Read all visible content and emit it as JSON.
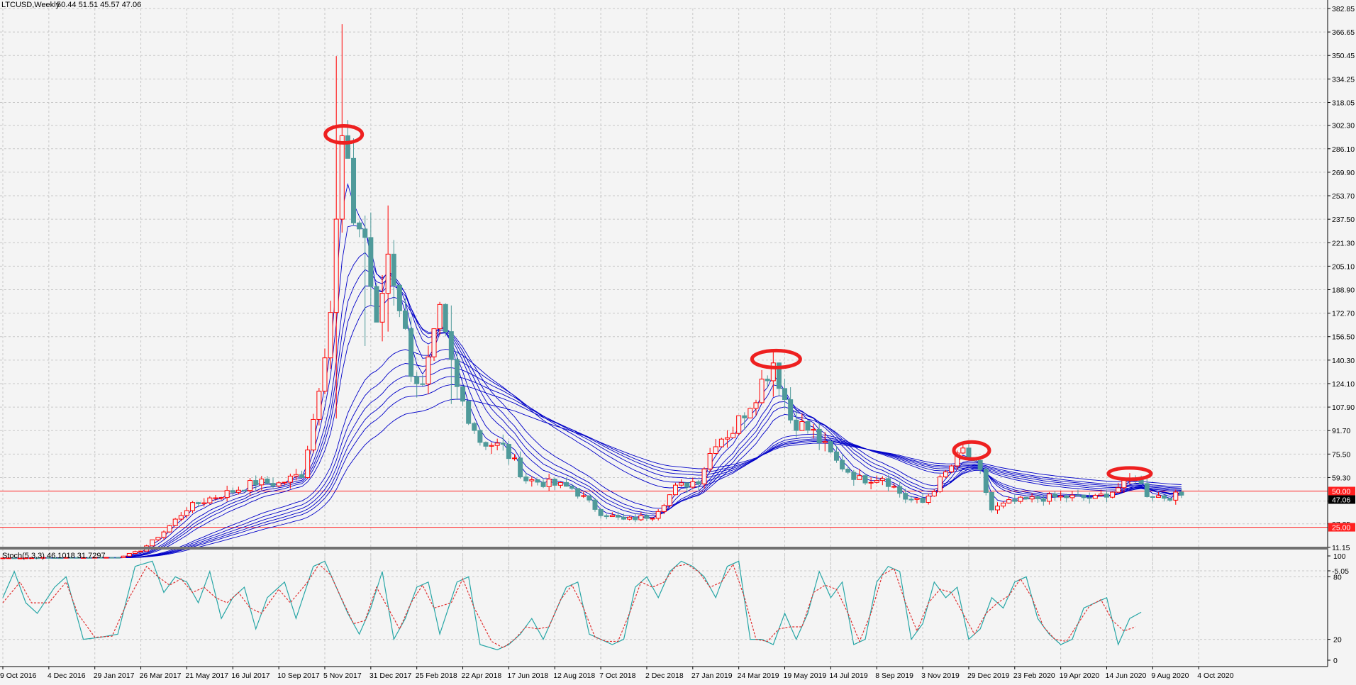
{
  "header": {
    "symbol": "LTCUSD,Weekly",
    "ohlc": "50.44 51.51 45.57 47.06"
  },
  "indicator": {
    "label": "Stoch(5,3,3) 46.1018 31.7297",
    "levels": [
      "100",
      "80",
      "20",
      "0"
    ]
  },
  "colors": {
    "background": "#f4f4f4",
    "grid": "#c8c8c8",
    "bull": "#ff0000",
    "bear": "#4f9a9a",
    "ma": "#0000c8",
    "stoch_main": "#27a6a6",
    "stoch_signal": "#e03030",
    "hline": "#ff2020",
    "marker": "#ee2020"
  },
  "chart_data": [
    {
      "type": "candlestick",
      "ylim": [
        -5.05,
        382.85
      ],
      "y_ticks": [
        "382.85",
        "366.65",
        "350.45",
        "334.25",
        "318.05",
        "302.30",
        "286.10",
        "269.90",
        "253.70",
        "237.50",
        "221.30",
        "205.10",
        "188.90",
        "172.70",
        "156.50",
        "140.30",
        "124.10",
        "107.90",
        "91.70",
        "75.50",
        "59.30",
        "43.10",
        "27.35",
        "11.15",
        "-5.05"
      ],
      "x_labels": [
        "9 Oct 2016",
        "4 Dec 2016",
        "29 Jan 2017",
        "26 Mar 2017",
        "21 May 2017",
        "16 Jul 2017",
        "10 Sep 2017",
        "5 Nov 2017",
        "31 Dec 2017",
        "25 Feb 2018",
        "22 Apr 2018",
        "17 Jun 2018",
        "12 Aug 2018",
        "7 Oct 2018",
        "2 Dec 2018",
        "27 Jan 2019",
        "24 Mar 2019",
        "19 May 2019",
        "14 Jul 2019",
        "8 Sep 2019",
        "3 Nov 2019",
        "29 Dec 2019",
        "23 Feb 2020",
        "19 Apr 2020",
        "14 Jun 2020",
        "9 Aug 2020",
        "4 Oct 2020"
      ],
      "horizontal_lines": [
        {
          "value": 50.0,
          "label": "50.00"
        },
        {
          "value": 25.0,
          "label": "25.00"
        }
      ],
      "current_price": {
        "value": 47.06,
        "label": "47.06"
      },
      "key_points": [
        {
          "week": 0,
          "close": 3.8
        },
        {
          "week": 20,
          "close": 4.2
        },
        {
          "week": 24,
          "close": 9
        },
        {
          "week": 28,
          "close": 22
        },
        {
          "week": 32,
          "close": 38
        },
        {
          "week": 36,
          "close": 45
        },
        {
          "week": 40,
          "close": 50
        },
        {
          "week": 44,
          "close": 56
        },
        {
          "week": 48,
          "close": 55
        },
        {
          "week": 52,
          "close": 62
        },
        {
          "week": 54,
          "close": 100
        },
        {
          "week": 57,
          "close": 175
        },
        {
          "week": 59,
          "close": 290
        },
        {
          "week": 61,
          "close": 240
        },
        {
          "week": 63,
          "close": 225
        },
        {
          "week": 65,
          "close": 160
        },
        {
          "week": 67,
          "close": 215
        },
        {
          "week": 69,
          "close": 180
        },
        {
          "week": 71,
          "close": 135
        },
        {
          "week": 73,
          "close": 120
        },
        {
          "week": 76,
          "close": 170
        },
        {
          "week": 79,
          "close": 120
        },
        {
          "week": 83,
          "close": 85
        },
        {
          "week": 87,
          "close": 80
        },
        {
          "week": 91,
          "close": 58
        },
        {
          "week": 95,
          "close": 55
        },
        {
          "week": 99,
          "close": 52
        },
        {
          "week": 104,
          "close": 35
        },
        {
          "week": 108,
          "close": 30
        },
        {
          "week": 113,
          "close": 33
        },
        {
          "week": 117,
          "close": 52
        },
        {
          "week": 121,
          "close": 58
        },
        {
          "week": 124,
          "close": 85
        },
        {
          "week": 127,
          "close": 92
        },
        {
          "week": 131,
          "close": 118
        },
        {
          "week": 134,
          "close": 140
        },
        {
          "week": 137,
          "close": 100
        },
        {
          "week": 141,
          "close": 90
        },
        {
          "week": 145,
          "close": 70
        },
        {
          "week": 149,
          "close": 58
        },
        {
          "week": 153,
          "close": 60
        },
        {
          "week": 157,
          "close": 45
        },
        {
          "week": 160,
          "close": 42
        },
        {
          "week": 164,
          "close": 62
        },
        {
          "week": 167,
          "close": 78
        },
        {
          "week": 170,
          "close": 62
        },
        {
          "week": 172,
          "close": 37
        },
        {
          "week": 175,
          "close": 42
        },
        {
          "week": 180,
          "close": 45
        },
        {
          "week": 185,
          "close": 46
        },
        {
          "week": 190,
          "close": 45
        },
        {
          "week": 193,
          "close": 50
        },
        {
          "week": 197,
          "close": 60
        },
        {
          "week": 199,
          "close": 48
        },
        {
          "week": 202,
          "close": 46
        },
        {
          "week": 205,
          "close": 47.06
        }
      ],
      "spikes": [
        {
          "week": 58,
          "high": 350,
          "low": 100
        },
        {
          "week": 59,
          "high": 372,
          "low": 270
        },
        {
          "week": 63,
          "high": 240,
          "low": 150
        },
        {
          "week": 67,
          "high": 247,
          "low": 160
        },
        {
          "week": 78,
          "high": 178,
          "low": 110
        },
        {
          "week": 134,
          "high": 147,
          "low": 115
        }
      ],
      "moving_averages": [
        3,
        5,
        8,
        10,
        12,
        15,
        30,
        35,
        40,
        45,
        50,
        60
      ],
      "markers": [
        {
          "week": 59.3,
          "price": 296
        },
        {
          "week": 134.5,
          "price": 141
        },
        {
          "week": 168.5,
          "price": 78
        },
        {
          "week": 196,
          "price": 62
        }
      ]
    },
    {
      "type": "line",
      "title": "Stoch(5,3,3) 46.1018 31.7297",
      "ylim": [
        0,
        100
      ],
      "levels": [
        20,
        80
      ],
      "series": [
        {
          "name": "main",
          "key_points": [
            [
              0,
              60
            ],
            [
              2,
              85
            ],
            [
              4,
              55
            ],
            [
              6,
              45
            ],
            [
              9,
              70
            ],
            [
              11,
              80
            ],
            [
              14,
              20
            ],
            [
              17,
              22
            ],
            [
              20,
              25
            ],
            [
              23,
              90
            ],
            [
              26,
              95
            ],
            [
              28,
              65
            ],
            [
              30,
              80
            ],
            [
              32,
              75
            ],
            [
              34,
              55
            ],
            [
              36,
              85
            ],
            [
              38,
              40
            ],
            [
              40,
              60
            ],
            [
              42,
              70
            ],
            [
              44,
              30
            ],
            [
              46,
              60
            ],
            [
              49,
              75
            ],
            [
              51,
              40
            ],
            [
              54,
              90
            ],
            [
              56,
              95
            ],
            [
              58,
              70
            ],
            [
              60,
              45
            ],
            [
              62,
              25
            ],
            [
              64,
              50
            ],
            [
              66,
              85
            ],
            [
              68,
              20
            ],
            [
              70,
              40
            ],
            [
              72,
              70
            ],
            [
              74,
              75
            ],
            [
              76,
              25
            ],
            [
              79,
              75
            ],
            [
              81,
              80
            ],
            [
              83,
              15
            ],
            [
              86,
              10
            ],
            [
              88,
              15
            ],
            [
              90,
              25
            ],
            [
              92,
              40
            ],
            [
              94,
              20
            ],
            [
              96,
              45
            ],
            [
              98,
              70
            ],
            [
              100,
              75
            ],
            [
              102,
              25
            ],
            [
              104,
              20
            ],
            [
              106,
              15
            ],
            [
              108,
              20
            ],
            [
              110,
              70
            ],
            [
              112,
              80
            ],
            [
              114,
              60
            ],
            [
              116,
              85
            ],
            [
              118,
              95
            ],
            [
              120,
              90
            ],
            [
              122,
              80
            ],
            [
              124,
              60
            ],
            [
              126,
              90
            ],
            [
              128,
              95
            ],
            [
              130,
              20
            ],
            [
              132,
              20
            ],
            [
              134,
              15
            ],
            [
              136,
              45
            ],
            [
              138,
              20
            ],
            [
              140,
              45
            ],
            [
              142,
              85
            ],
            [
              144,
              60
            ],
            [
              146,
              75
            ],
            [
              148,
              15
            ],
            [
              150,
              20
            ],
            [
              152,
              75
            ],
            [
              154,
              90
            ],
            [
              156,
              85
            ],
            [
              158,
              20
            ],
            [
              160,
              35
            ],
            [
              162,
              75
            ],
            [
              164,
              60
            ],
            [
              166,
              70
            ],
            [
              168,
              20
            ],
            [
              170,
              30
            ],
            [
              172,
              60
            ],
            [
              174,
              50
            ],
            [
              176,
              75
            ],
            [
              178,
              80
            ],
            [
              180,
              40
            ],
            [
              182,
              25
            ],
            [
              184,
              15
            ],
            [
              186,
              20
            ],
            [
              188,
              50
            ],
            [
              190,
              55
            ],
            [
              192,
              60
            ],
            [
              194,
              15
            ],
            [
              196,
              40
            ],
            [
              198,
              46
            ]
          ]
        },
        {
          "name": "signal",
          "key_points": [
            [
              0,
              55
            ],
            [
              3,
              75
            ],
            [
              5,
              55
            ],
            [
              8,
              55
            ],
            [
              11,
              75
            ],
            [
              13,
              45
            ],
            [
              16,
              22
            ],
            [
              19,
              23
            ],
            [
              22,
              60
            ],
            [
              25,
              90
            ],
            [
              27,
              80
            ],
            [
              29,
              72
            ],
            [
              31,
              78
            ],
            [
              33,
              65
            ],
            [
              35,
              70
            ],
            [
              37,
              60
            ],
            [
              39,
              55
            ],
            [
              41,
              65
            ],
            [
              43,
              50
            ],
            [
              45,
              45
            ],
            [
              48,
              68
            ],
            [
              50,
              55
            ],
            [
              53,
              75
            ],
            [
              55,
              92
            ],
            [
              57,
              82
            ],
            [
              59,
              58
            ],
            [
              61,
              35
            ],
            [
              63,
              38
            ],
            [
              65,
              70
            ],
            [
              67,
              50
            ],
            [
              69,
              30
            ],
            [
              71,
              55
            ],
            [
              73,
              72
            ],
            [
              75,
              50
            ],
            [
              78,
              55
            ],
            [
              80,
              78
            ],
            [
              82,
              50
            ],
            [
              85,
              18
            ],
            [
              87,
              12
            ],
            [
              89,
              20
            ],
            [
              91,
              32
            ],
            [
              93,
              30
            ],
            [
              95,
              32
            ],
            [
              97,
              58
            ],
            [
              99,
              72
            ],
            [
              101,
              50
            ],
            [
              103,
              22
            ],
            [
              105,
              18
            ],
            [
              107,
              18
            ],
            [
              109,
              45
            ],
            [
              111,
              75
            ],
            [
              113,
              70
            ],
            [
              115,
              75
            ],
            [
              117,
              90
            ],
            [
              119,
              92
            ],
            [
              121,
              85
            ],
            [
              123,
              70
            ],
            [
              125,
              75
            ],
            [
              127,
              92
            ],
            [
              129,
              60
            ],
            [
              131,
              20
            ],
            [
              133,
              18
            ],
            [
              135,
              30
            ],
            [
              137,
              32
            ],
            [
              139,
              32
            ],
            [
              141,
              65
            ],
            [
              143,
              72
            ],
            [
              145,
              68
            ],
            [
              147,
              45
            ],
            [
              149,
              18
            ],
            [
              151,
              45
            ],
            [
              153,
              82
            ],
            [
              155,
              88
            ],
            [
              157,
              55
            ],
            [
              159,
              28
            ],
            [
              161,
              55
            ],
            [
              163,
              68
            ],
            [
              165,
              65
            ],
            [
              167,
              45
            ],
            [
              169,
              25
            ],
            [
              171,
              45
            ],
            [
              173,
              55
            ],
            [
              175,
              62
            ],
            [
              177,
              78
            ],
            [
              179,
              60
            ],
            [
              181,
              32
            ],
            [
              183,
              20
            ],
            [
              185,
              18
            ],
            [
              187,
              35
            ],
            [
              189,
              52
            ],
            [
              191,
              58
            ],
            [
              193,
              38
            ],
            [
              195,
              28
            ],
            [
              197,
              32
            ]
          ]
        }
      ]
    }
  ]
}
